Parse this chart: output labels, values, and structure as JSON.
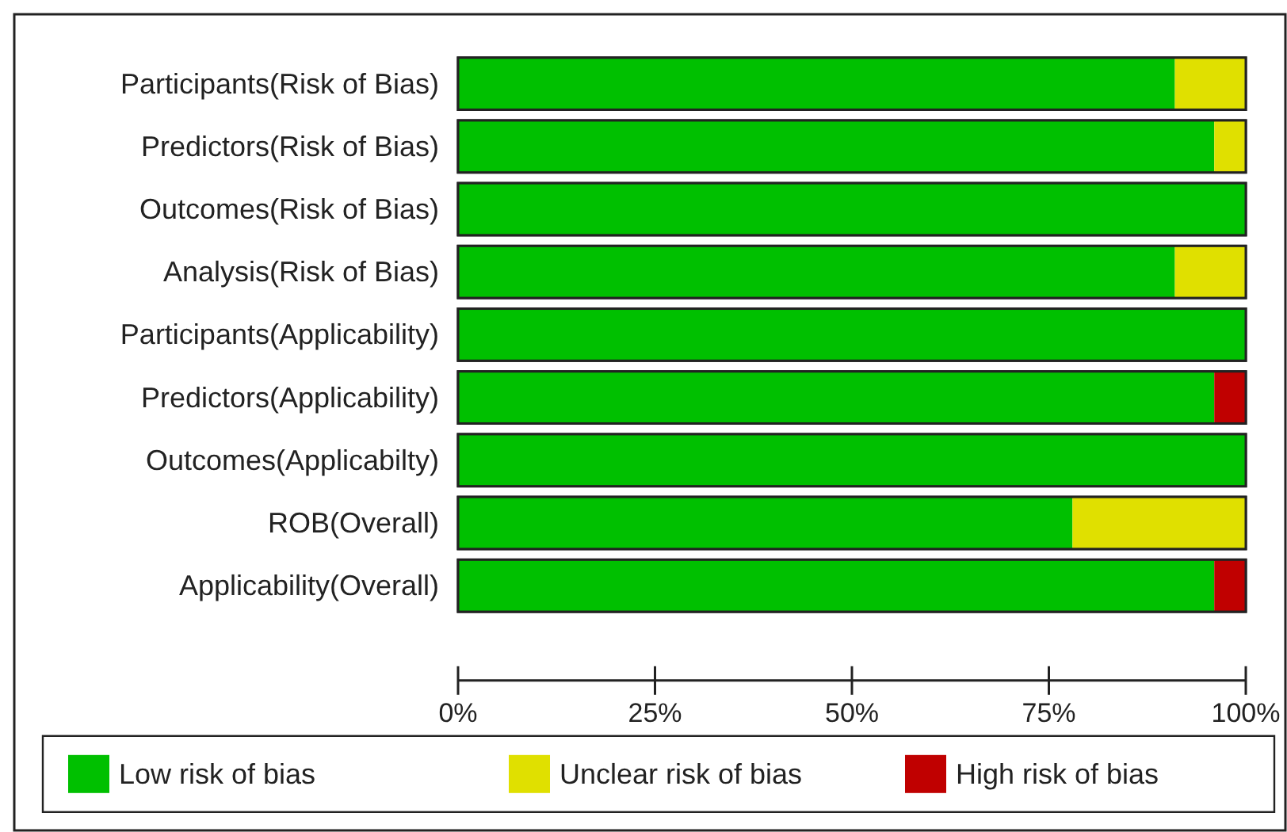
{
  "chart_data": {
    "type": "bar",
    "orientation": "horizontal",
    "stacked": true,
    "categories": [
      "Participants(Risk of Bias)",
      "Predictors(Risk of Bias)",
      "Outcomes(Risk of Bias)",
      "Analysis(Risk of Bias)",
      "Participants(Applicability)",
      "Predictors(Applicability)",
      "Outcomes(Applicabilty)",
      "ROB(Overall)",
      "Applicability(Overall)"
    ],
    "series": [
      {
        "name": "Low risk of bias",
        "color": "#00c000",
        "values": [
          91,
          96,
          100,
          91,
          100,
          96,
          100,
          78,
          96
        ]
      },
      {
        "name": "Unclear risk of bias",
        "color": "#e0e000",
        "values": [
          9,
          4,
          0,
          9,
          0,
          0,
          0,
          22,
          0
        ]
      },
      {
        "name": "High risk of bias",
        "color": "#c00000",
        "values": [
          0,
          0,
          0,
          0,
          0,
          4,
          0,
          0,
          4
        ]
      }
    ],
    "xlim": [
      0,
      100
    ],
    "xticks": [
      {
        "value": 0,
        "label": "0%"
      },
      {
        "value": 25,
        "label": "25%"
      },
      {
        "value": 50,
        "label": "50%"
      },
      {
        "value": 75,
        "label": "75%"
      },
      {
        "value": 100,
        "label": "100%"
      }
    ],
    "legend": "bottom",
    "grid": false
  }
}
